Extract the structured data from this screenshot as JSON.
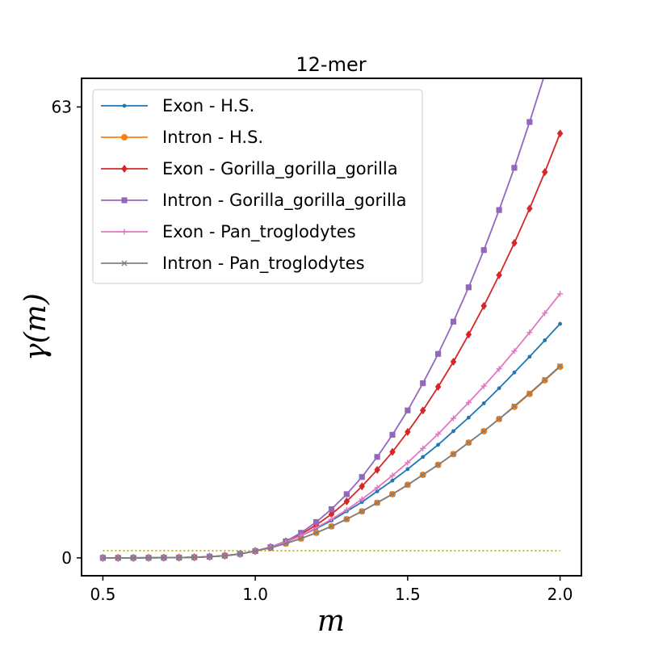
{
  "chart_data": {
    "type": "line",
    "title": "12-mer",
    "xlabel": "m",
    "ylabel": "γ(m)",
    "xlim": [
      0.43,
      2.07
    ],
    "ylim": [
      -2.5,
      67
    ],
    "xticks": [
      0.5,
      1.0,
      1.5,
      2.0
    ],
    "xtick_labels": [
      "0.5",
      "1.0",
      "1.5",
      "2.0"
    ],
    "yticks": [
      0,
      63
    ],
    "ytick_labels": [
      "0",
      "63"
    ],
    "legend_position": "top-left",
    "x": [
      0.5,
      0.55,
      0.6,
      0.65,
      0.7,
      0.75,
      0.8,
      0.85,
      0.9,
      0.95,
      1.0,
      1.05,
      1.1,
      1.15,
      1.2,
      1.25,
      1.3,
      1.35,
      1.4,
      1.45,
      1.5,
      1.55,
      1.6,
      1.65,
      1.7,
      1.75,
      1.8,
      1.85,
      1.9,
      1.95,
      2.0
    ],
    "reference_line": {
      "y": 1.0,
      "x_range": [
        0.5,
        2.0
      ],
      "style": "dotted",
      "color": "#bcbd22"
    },
    "series": [
      {
        "name": "Exon - H.S.",
        "color": "#1f77b4",
        "marker": "point",
        "values": [
          0.0,
          0.0,
          0.0,
          0.01,
          0.02,
          0.04,
          0.08,
          0.16,
          0.3,
          0.55,
          0.95,
          1.5,
          2.2,
          3.1,
          4.1,
          5.2,
          6.5,
          7.8,
          9.3,
          10.8,
          12.4,
          14.1,
          15.8,
          17.7,
          19.6,
          21.6,
          23.7,
          25.9,
          28.1,
          30.4,
          32.7
        ]
      },
      {
        "name": "Intron - H.S.",
        "color": "#ff7f0e",
        "marker": "circle",
        "values": [
          0.0,
          0.0,
          0.0,
          0.01,
          0.02,
          0.04,
          0.08,
          0.16,
          0.3,
          0.55,
          0.95,
          1.4,
          2.0,
          2.7,
          3.5,
          4.4,
          5.4,
          6.5,
          7.7,
          8.9,
          10.2,
          11.6,
          13.0,
          14.5,
          16.1,
          17.7,
          19.4,
          21.1,
          22.9,
          24.8,
          26.7
        ]
      },
      {
        "name": "Exon - Gorilla_gorilla_gorilla",
        "color": "#d62728",
        "marker": "diamond",
        "values": [
          0.0,
          0.0,
          0.0,
          0.01,
          0.02,
          0.04,
          0.08,
          0.16,
          0.3,
          0.55,
          0.95,
          1.5,
          2.3,
          3.3,
          4.6,
          6.1,
          7.9,
          10.0,
          12.3,
          14.8,
          17.6,
          20.6,
          23.9,
          27.4,
          31.2,
          35.2,
          39.5,
          44.0,
          48.8,
          53.9,
          59.3
        ]
      },
      {
        "name": "Intron - Gorilla_gorilla_gorilla",
        "color": "#9467bd",
        "marker": "square",
        "values": [
          0.0,
          0.0,
          0.0,
          0.01,
          0.02,
          0.04,
          0.08,
          0.16,
          0.3,
          0.55,
          0.95,
          1.5,
          2.3,
          3.5,
          5.0,
          6.8,
          8.9,
          11.3,
          14.1,
          17.2,
          20.6,
          24.4,
          28.5,
          33.0,
          37.8,
          43.0,
          48.6,
          54.5,
          60.9,
          67.6,
          74.8
        ]
      },
      {
        "name": "Exon - Pan_troglodytes",
        "color": "#e377c2",
        "marker": "plus",
        "values": [
          0.0,
          0.0,
          0.0,
          0.01,
          0.02,
          0.04,
          0.08,
          0.16,
          0.3,
          0.55,
          0.95,
          1.5,
          2.2,
          3.1,
          4.2,
          5.4,
          6.7,
          8.2,
          9.8,
          11.5,
          13.3,
          15.3,
          17.3,
          19.5,
          21.7,
          24.0,
          26.4,
          28.9,
          31.5,
          34.2,
          36.9
        ]
      },
      {
        "name": "Intron - Pan_troglodytes",
        "color": "#7f7f7f",
        "marker": "x",
        "values": [
          0.0,
          0.0,
          0.0,
          0.01,
          0.02,
          0.04,
          0.08,
          0.16,
          0.3,
          0.55,
          0.95,
          1.4,
          2.0,
          2.7,
          3.5,
          4.4,
          5.4,
          6.5,
          7.7,
          8.9,
          10.2,
          11.6,
          13.0,
          14.5,
          16.1,
          17.7,
          19.4,
          21.2,
          23.0,
          24.9,
          26.8
        ]
      }
    ]
  }
}
